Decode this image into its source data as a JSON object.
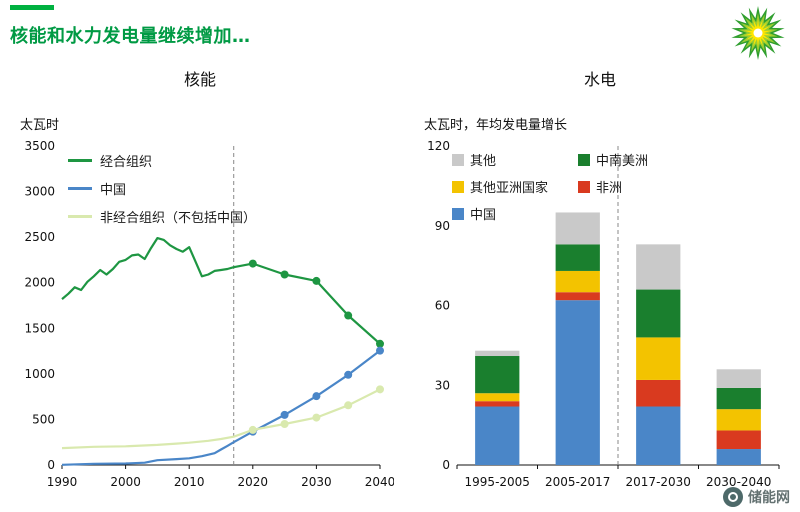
{
  "page": {
    "title": "核能和水力发电量继续增加…",
    "accent_color": "#00b140",
    "title_color": "#009a44",
    "watermark": "储能网"
  },
  "logo": {
    "name": "bp-helios",
    "colors": {
      "outer": "#2f9e2f",
      "mid": "#9acd32",
      "inner": "#ffe600",
      "center": "#ffffff"
    }
  },
  "nuclear": {
    "title": "核能",
    "unit_label": "太瓦时"
  },
  "hydro": {
    "title": "水电",
    "unit_label": "太瓦时，年均发电量增长"
  },
  "chart_data": [
    {
      "type": "line",
      "title": "核能",
      "ylabel": "太瓦时",
      "ylim": [
        0,
        3500
      ],
      "ytick_step": 500,
      "xlim": [
        1990,
        2040
      ],
      "xticks": [
        1990,
        2000,
        2010,
        2020,
        2030,
        2040
      ],
      "divider_x": 2017,
      "marker_from": 2020,
      "grid": false,
      "legend_position": "top-left-inside",
      "series": [
        {
          "name": "经合组织",
          "color": "#1e9642",
          "points": [
            [
              1990,
              1820
            ],
            [
              1991,
              1880
            ],
            [
              1992,
              1950
            ],
            [
              1993,
              1920
            ],
            [
              1994,
              2010
            ],
            [
              1995,
              2070
            ],
            [
              1996,
              2140
            ],
            [
              1997,
              2090
            ],
            [
              1998,
              2150
            ],
            [
              1999,
              2230
            ],
            [
              2000,
              2250
            ],
            [
              2001,
              2300
            ],
            [
              2002,
              2310
            ],
            [
              2003,
              2260
            ],
            [
              2004,
              2380
            ],
            [
              2005,
              2490
            ],
            [
              2006,
              2470
            ],
            [
              2007,
              2410
            ],
            [
              2008,
              2370
            ],
            [
              2009,
              2340
            ],
            [
              2010,
              2390
            ],
            [
              2011,
              2230
            ],
            [
              2012,
              2070
            ],
            [
              2013,
              2090
            ],
            [
              2014,
              2130
            ],
            [
              2015,
              2140
            ],
            [
              2016,
              2150
            ],
            [
              2017,
              2170
            ],
            [
              2020,
              2210
            ],
            [
              2025,
              2090
            ],
            [
              2030,
              2020
            ],
            [
              2035,
              1640
            ],
            [
              2040,
              1330
            ]
          ]
        },
        {
          "name": "中国",
          "color": "#4a86c8",
          "points": [
            [
              1990,
              2
            ],
            [
              1995,
              13
            ],
            [
              2000,
              17
            ],
            [
              2003,
              25
            ],
            [
              2005,
              53
            ],
            [
              2008,
              65
            ],
            [
              2010,
              74
            ],
            [
              2012,
              97
            ],
            [
              2014,
              130
            ],
            [
              2015,
              170
            ],
            [
              2016,
              210
            ],
            [
              2017,
              250
            ],
            [
              2020,
              366
            ],
            [
              2025,
              550
            ],
            [
              2030,
              755
            ],
            [
              2035,
              990
            ],
            [
              2040,
              1255
            ]
          ]
        },
        {
          "name": "非经合组织（不包括中国）",
          "color": "#d9e9ae",
          "points": [
            [
              1990,
              185
            ],
            [
              1995,
              200
            ],
            [
              2000,
              205
            ],
            [
              2005,
              220
            ],
            [
              2008,
              235
            ],
            [
              2010,
              245
            ],
            [
              2013,
              265
            ],
            [
              2015,
              285
            ],
            [
              2017,
              310
            ],
            [
              2020,
              385
            ],
            [
              2025,
              450
            ],
            [
              2030,
              520
            ],
            [
              2035,
              655
            ],
            [
              2040,
              830
            ]
          ]
        }
      ]
    },
    {
      "type": "bar",
      "title": "水电",
      "ylabel": "太瓦时，年均发电量增长",
      "ylim": [
        0,
        120
      ],
      "ytick_step": 30,
      "categories": [
        "1995-2005",
        "2005-2017",
        "2017-2030",
        "2030-2040"
      ],
      "divider_after_index": 1,
      "stacked": true,
      "grid": false,
      "legend_position": "top-inside-two-columns",
      "series": [
        {
          "name": "中国",
          "color": "#4a86c8",
          "values": [
            22,
            62,
            22,
            6
          ]
        },
        {
          "name": "非洲",
          "color": "#d93a1f",
          "values": [
            2,
            3,
            10,
            7
          ]
        },
        {
          "name": "其他亚洲国家",
          "color": "#f3c300",
          "values": [
            3,
            8,
            16,
            8
          ]
        },
        {
          "name": "中南美洲",
          "color": "#1a7f2e",
          "values": [
            14,
            10,
            18,
            8
          ]
        },
        {
          "name": "其他",
          "color": "#c9c9c9",
          "values": [
            2,
            12,
            17,
            7
          ]
        }
      ],
      "legend_columns": [
        [
          "其他",
          "其他亚洲国家",
          "中国"
        ],
        [
          "中南美洲",
          "非洲"
        ]
      ]
    }
  ]
}
